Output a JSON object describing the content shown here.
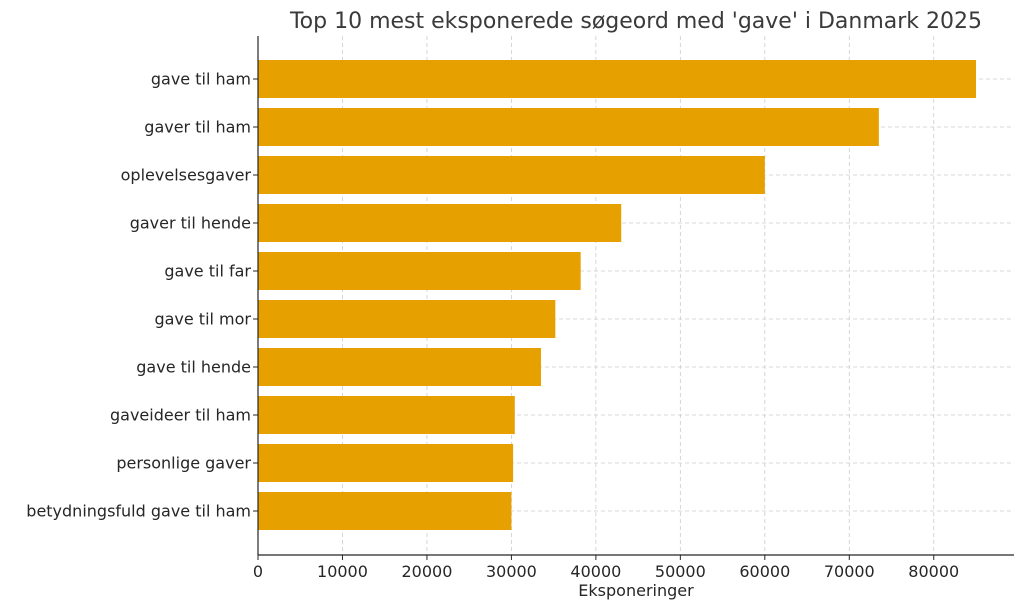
{
  "chart_data": {
    "type": "bar",
    "orientation": "horizontal",
    "title": "Top 10 mest eksponerede søgeord med 'gave' i Danmark 2025",
    "xlabel": "Eksponeringer",
    "ylabel": "",
    "xlim": [
      0,
      89500
    ],
    "xticks": [
      0,
      10000,
      20000,
      30000,
      40000,
      50000,
      60000,
      70000,
      80000
    ],
    "grid": true,
    "bar_color": "#e6a000",
    "categories": [
      "gave til ham",
      "gaver til ham",
      "oplevelsesgaver",
      "gaver til hende",
      "gave til far",
      "gave til mor",
      "gave til hende",
      "gaveideer til ham",
      "personlige gaver",
      "betydningsfuld gave til ham"
    ],
    "values": [
      85000,
      73500,
      60000,
      43000,
      38200,
      35200,
      33500,
      30400,
      30200,
      30000
    ]
  }
}
